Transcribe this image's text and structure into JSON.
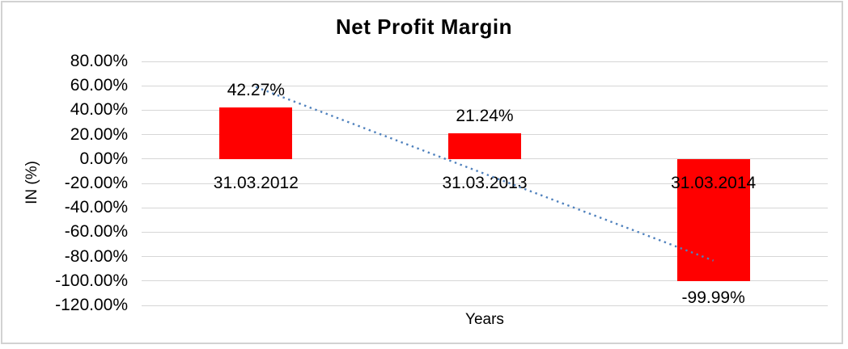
{
  "chart_data": {
    "type": "bar",
    "title": "Net Profit Margin",
    "xlabel": "Years",
    "ylabel": "IN (%)",
    "categories": [
      "31.03.2012",
      "31.03.2013",
      "31.03.2014"
    ],
    "values": [
      42.27,
      21.24,
      -99.99
    ],
    "data_labels": [
      "42.27%",
      "21.24%",
      "-99.99%"
    ],
    "y_ticks": [
      "80.00%",
      "60.00%",
      "40.00%",
      "20.00%",
      "0.00%",
      "-20.00%",
      "-40.00%",
      "-60.00%",
      "-80.00%",
      "-100.00%",
      "-120.00%"
    ],
    "y_tick_values": [
      80,
      60,
      40,
      20,
      0,
      -20,
      -40,
      -60,
      -80,
      -100,
      -120
    ],
    "ylim": [
      -120,
      80
    ],
    "grid": true,
    "legend": "none",
    "bar_color": "#ff0000",
    "gridline_color": "#d6d6d6",
    "text_color": "#000000",
    "trendline": {
      "type": "linear",
      "style": "dotted",
      "color": "#4f81bd"
    }
  }
}
